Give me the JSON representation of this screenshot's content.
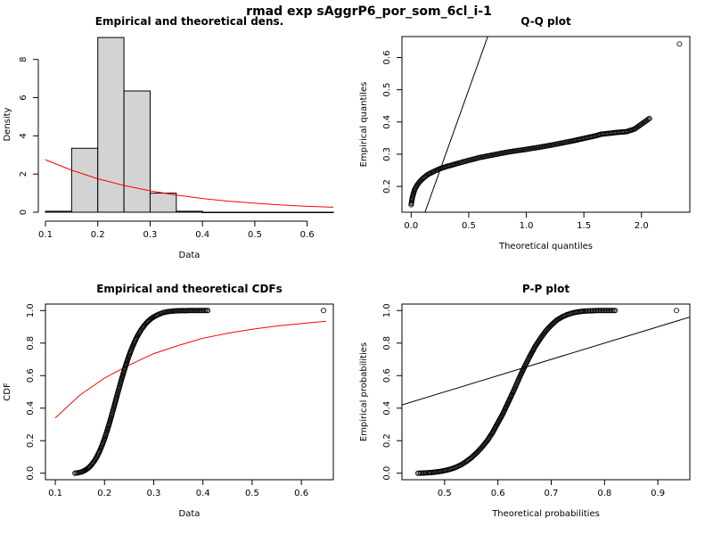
{
  "figure_title": "rmad exp sAggrP6_por_som_6cl_i-1",
  "colors": {
    "axis": "#000000",
    "hist_fill": "#d3d3d3",
    "theory": "#ff0000",
    "points": "#000000",
    "background": "#ffffff"
  },
  "chart_data": [
    {
      "id": "density",
      "type": "bar",
      "title": "Empirical and theoretical dens.",
      "xlabel": "Data",
      "ylabel": "Density",
      "xlim": [
        0.1,
        0.65
      ],
      "ylim": [
        0,
        9.2
      ],
      "xticks": [
        0.1,
        0.2,
        0.3,
        0.4,
        0.5,
        0.6
      ],
      "xtick_labels": [
        "0.1",
        "0.2",
        "0.3",
        "0.4",
        "0.5",
        "0.6"
      ],
      "yticks": [
        0,
        2,
        4,
        6,
        8
      ],
      "ytick_labels": [
        "0",
        "2",
        "4",
        "6",
        "8"
      ],
      "bins": [
        {
          "x0": 0.1,
          "x1": 0.15,
          "density": 0.05
        },
        {
          "x0": 0.15,
          "x1": 0.2,
          "density": 3.35
        },
        {
          "x0": 0.2,
          "x1": 0.25,
          "density": 9.15
        },
        {
          "x0": 0.25,
          "x1": 0.3,
          "density": 6.35
        },
        {
          "x0": 0.3,
          "x1": 0.35,
          "density": 1.0
        },
        {
          "x0": 0.35,
          "x1": 0.4,
          "density": 0.05
        },
        {
          "x0": 0.4,
          "x1": 0.45,
          "density": 0.0
        },
        {
          "x0": 0.45,
          "x1": 0.5,
          "density": 0.0
        },
        {
          "x0": 0.5,
          "x1": 0.55,
          "density": 0.0
        },
        {
          "x0": 0.55,
          "x1": 0.6,
          "density": 0.0
        },
        {
          "x0": 0.6,
          "x1": 0.65,
          "density": 0.0
        }
      ],
      "theoretical_curve": {
        "x": [
          0.1,
          0.15,
          0.2,
          0.25,
          0.3,
          0.35,
          0.4,
          0.45,
          0.5,
          0.55,
          0.6,
          0.65
        ],
        "y": [
          2.75,
          2.2,
          1.75,
          1.4,
          1.12,
          0.9,
          0.72,
          0.58,
          0.47,
          0.38,
          0.31,
          0.26
        ]
      }
    },
    {
      "id": "qq",
      "type": "scatter",
      "title": "Q-Q plot",
      "xlabel": "Theoretical quantiles",
      "ylabel": "Empirical quantiles",
      "xlim": [
        -0.08,
        2.42
      ],
      "ylim": [
        0.12,
        0.665
      ],
      "xticks": [
        0.0,
        0.5,
        1.0,
        1.5,
        2.0
      ],
      "xtick_labels": [
        "0.0",
        "0.5",
        "1.0",
        "1.5",
        "2.0"
      ],
      "yticks": [
        0.2,
        0.3,
        0.4,
        0.5,
        0.6
      ],
      "ytick_labels": [
        "0.2",
        "0.3",
        "0.4",
        "0.5",
        "0.6"
      ],
      "points": {
        "x": [
          0.0,
          0.005,
          0.01,
          0.02,
          0.03,
          0.05,
          0.07,
          0.1,
          0.13,
          0.16,
          0.2,
          0.25,
          0.3,
          0.35,
          0.4,
          0.5,
          0.6,
          0.7,
          0.8,
          0.9,
          1.0,
          1.1,
          1.2,
          1.3,
          1.4,
          1.45,
          1.5,
          1.55,
          1.6,
          1.65,
          1.7,
          1.75,
          1.8,
          1.87,
          1.94,
          2.07,
          2.33
        ],
        "y": [
          0.143,
          0.155,
          0.165,
          0.178,
          0.19,
          0.203,
          0.213,
          0.224,
          0.233,
          0.24,
          0.247,
          0.255,
          0.261,
          0.266,
          0.271,
          0.281,
          0.29,
          0.297,
          0.304,
          0.31,
          0.315,
          0.321,
          0.327,
          0.334,
          0.341,
          0.345,
          0.349,
          0.353,
          0.357,
          0.362,
          0.364,
          0.366,
          0.368,
          0.37,
          0.378,
          0.411,
          0.642
        ]
      },
      "reference_line": {
        "x": [
          0.12,
          0.68
        ],
        "y": [
          0.12,
          0.68
        ]
      }
    },
    {
      "id": "cdf",
      "type": "scatter",
      "title": "Empirical and theoretical CDFs",
      "xlabel": "Data",
      "ylabel": "CDF",
      "xlim": [
        0.08,
        0.665
      ],
      "ylim": [
        -0.04,
        1.04
      ],
      "xticks": [
        0.1,
        0.2,
        0.3,
        0.4,
        0.5,
        0.6
      ],
      "xtick_labels": [
        "0.1",
        "0.2",
        "0.3",
        "0.4",
        "0.5",
        "0.6"
      ],
      "yticks": [
        0.0,
        0.2,
        0.4,
        0.6,
        0.8,
        1.0
      ],
      "ytick_labels": [
        "0.0",
        "0.2",
        "0.4",
        "0.6",
        "0.8",
        "1.0"
      ],
      "points": {
        "x": [
          0.14,
          0.145,
          0.15,
          0.155,
          0.16,
          0.165,
          0.17,
          0.175,
          0.18,
          0.185,
          0.19,
          0.195,
          0.2,
          0.205,
          0.21,
          0.215,
          0.22,
          0.225,
          0.23,
          0.235,
          0.24,
          0.245,
          0.25,
          0.255,
          0.26,
          0.265,
          0.27,
          0.275,
          0.28,
          0.285,
          0.29,
          0.295,
          0.3,
          0.31,
          0.32,
          0.33,
          0.34,
          0.35,
          0.36,
          0.37,
          0.41,
          0.645
        ],
        "y": [
          0.0,
          0.002,
          0.005,
          0.01,
          0.017,
          0.027,
          0.04,
          0.057,
          0.078,
          0.104,
          0.135,
          0.171,
          0.212,
          0.258,
          0.308,
          0.361,
          0.416,
          0.472,
          0.527,
          0.581,
          0.632,
          0.68,
          0.724,
          0.764,
          0.8,
          0.832,
          0.86,
          0.884,
          0.905,
          0.923,
          0.938,
          0.951,
          0.961,
          0.977,
          0.988,
          0.994,
          0.997,
          0.999,
          0.9995,
          1.0,
          1.0,
          1.0
        ]
      },
      "theoretical_curve": {
        "x": [
          0.1,
          0.15,
          0.2,
          0.25,
          0.3,
          0.35,
          0.4,
          0.45,
          0.5,
          0.55,
          0.6,
          0.65
        ],
        "y": [
          0.34,
          0.48,
          0.585,
          0.665,
          0.735,
          0.785,
          0.83,
          0.86,
          0.885,
          0.905,
          0.92,
          0.935
        ]
      }
    },
    {
      "id": "pp",
      "type": "scatter",
      "title": "P-P plot",
      "xlabel": "Theoretical probabilities",
      "ylabel": "Empirical probabilities",
      "xlim": [
        0.42,
        0.96
      ],
      "ylim": [
        -0.04,
        1.04
      ],
      "xticks": [
        0.5,
        0.6,
        0.7,
        0.8,
        0.9
      ],
      "xtick_labels": [
        "0.5",
        "0.6",
        "0.7",
        "0.8",
        "0.9"
      ],
      "yticks": [
        0.0,
        0.2,
        0.4,
        0.6,
        0.8,
        1.0
      ],
      "ytick_labels": [
        "0.0",
        "0.2",
        "0.4",
        "0.6",
        "0.8",
        "1.0"
      ],
      "points": {
        "x": [
          0.45,
          0.46,
          0.47,
          0.48,
          0.49,
          0.5,
          0.51,
          0.52,
          0.53,
          0.54,
          0.55,
          0.56,
          0.57,
          0.58,
          0.59,
          0.6,
          0.61,
          0.62,
          0.63,
          0.64,
          0.65,
          0.66,
          0.67,
          0.68,
          0.69,
          0.7,
          0.71,
          0.72,
          0.73,
          0.74,
          0.75,
          0.76,
          0.77,
          0.78,
          0.785,
          0.795,
          0.82,
          0.935
        ],
        "y": [
          0.0,
          0.001,
          0.003,
          0.006,
          0.01,
          0.016,
          0.024,
          0.035,
          0.05,
          0.07,
          0.095,
          0.125,
          0.16,
          0.2,
          0.25,
          0.31,
          0.37,
          0.44,
          0.51,
          0.585,
          0.655,
          0.72,
          0.78,
          0.83,
          0.875,
          0.91,
          0.94,
          0.96,
          0.975,
          0.985,
          0.992,
          0.996,
          0.998,
          0.999,
          1.0,
          1.0,
          1.0,
          1.0
        ]
      },
      "reference_line": {
        "x": [
          0.42,
          0.96
        ],
        "y": [
          0.42,
          0.96
        ]
      }
    }
  ]
}
